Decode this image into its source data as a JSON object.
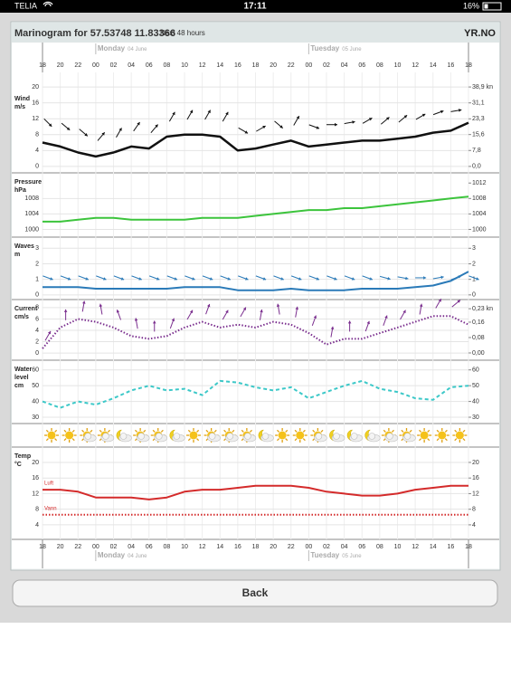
{
  "status_bar": {
    "carrier": "TELIA",
    "time": "17:11",
    "battery": "16%"
  },
  "header": {
    "title": "Marinogram for 57.53748 11.83366",
    "subtitle": "Next 48 hours",
    "logo": "YR.NO"
  },
  "time_axis": {
    "hours": [
      "18",
      "20",
      "22",
      "00",
      "02",
      "04",
      "06",
      "08",
      "10",
      "12",
      "14",
      "16",
      "18",
      "20",
      "22",
      "00",
      "02",
      "04",
      "06",
      "08",
      "10",
      "12",
      "14",
      "16",
      "18"
    ],
    "days": [
      {
        "name": "Monday",
        "date": "04 June"
      },
      {
        "name": "Tuesday",
        "date": "05 June"
      }
    ]
  },
  "chart_data": [
    {
      "type": "line",
      "label": [
        "Wind",
        "m/s"
      ],
      "ylim": [
        -1.4,
        21.4
      ],
      "yticks": [
        0,
        4,
        8,
        12,
        16,
        20
      ],
      "y2lim": [
        -2.72,
        41.6
      ],
      "y2ticks": [
        {
          "value": 0,
          "label": "0,0"
        },
        {
          "value": 7.8,
          "label": "7,8"
        },
        {
          "value": 15.6,
          "label": "15,6"
        },
        {
          "value": 23.3,
          "label": "23,3"
        },
        {
          "value": 31.1,
          "label": "31,1"
        },
        {
          "value": 38.9,
          "label": "38,9 kn"
        }
      ],
      "series": [
        {
          "color": "#111111",
          "line_style": "solid",
          "values": [
            6,
            5,
            3.5,
            2.5,
            3.5,
            5,
            4.5,
            7.5,
            8,
            8,
            7.5,
            4,
            4.5,
            5.5,
            6.5,
            5,
            5.5,
            6,
            6.5,
            6.5,
            7,
            7.5,
            8.5,
            9,
            11
          ],
          "directions": [
            45,
            40,
            40,
            -50,
            -60,
            -55,
            -50,
            -60,
            -60,
            -60,
            -60,
            30,
            -30,
            40,
            -60,
            20,
            0,
            -10,
            -30,
            -40,
            -40,
            -30,
            -20,
            -10,
            10
          ]
        }
      ]
    },
    {
      "type": "line",
      "label": [
        "Pressure",
        "hPa"
      ],
      "ylim": [
        998,
        1014.4
      ],
      "yticks": [
        1000,
        1004,
        1008
      ],
      "y2lim": [
        998,
        1014.4
      ],
      "y2ticks": [
        1000,
        1004,
        1008,
        1012
      ],
      "series": [
        {
          "color": "#3cc43c",
          "line_style": "solid",
          "values": [
            1002,
            1002,
            1002.5,
            1003,
            1003,
            1002.5,
            1002.5,
            1002.5,
            1002.5,
            1003,
            1003,
            1003,
            1003.5,
            1004,
            1004.5,
            1005,
            1005,
            1005.5,
            1005.5,
            1006,
            1006.5,
            1007,
            1007.5,
            1008,
            1008.5
          ]
        }
      ]
    },
    {
      "type": "line",
      "label": [
        "Waves",
        "m"
      ],
      "ylim": [
        -0.3,
        3.6
      ],
      "yticks": [
        0,
        1,
        2,
        3
      ],
      "y2lim": [
        -0.3,
        3.6
      ],
      "y2ticks": [
        0,
        1,
        2,
        3
      ],
      "series": [
        {
          "color": "#2a7ab8",
          "line_style": "solid",
          "values": [
            0.5,
            0.5,
            0.5,
            0.4,
            0.4,
            0.4,
            0.4,
            0.4,
            0.5,
            0.5,
            0.5,
            0.3,
            0.3,
            0.3,
            0.4,
            0.3,
            0.3,
            0.3,
            0.4,
            0.4,
            0.4,
            0.5,
            0.6,
            0.9,
            1.5
          ],
          "directions": [
            20,
            20,
            20,
            20,
            20,
            20,
            20,
            20,
            20,
            20,
            20,
            20,
            20,
            20,
            20,
            20,
            20,
            20,
            20,
            15,
            10,
            0,
            -10,
            -20,
            20
          ]
        }
      ]
    },
    {
      "type": "line",
      "label": [
        "Current",
        "cm/s"
      ],
      "ylim": [
        -1.1,
        9.1
      ],
      "yticks": [
        0,
        2,
        4,
        6,
        8
      ],
      "y2lim": [
        -0.033,
        0.268
      ],
      "y2ticks": [
        {
          "value": 0,
          "label": "0,00"
        },
        {
          "value": 0.08,
          "label": "0,08"
        },
        {
          "value": 0.16,
          "label": "0,16"
        },
        {
          "value": 0.23,
          "label": "0,23 kn"
        }
      ],
      "series": [
        {
          "color": "#7a2e8e",
          "line_style": "dotted",
          "values": [
            0.8,
            4.5,
            6,
            5.5,
            4.5,
            3,
            2.5,
            3,
            4.5,
            5.5,
            4.5,
            5,
            4.5,
            5.5,
            5,
            3.5,
            1.5,
            2.5,
            2.5,
            3.5,
            4.5,
            5.5,
            6.5,
            6.5,
            5
          ],
          "directions": [
            -60,
            -90,
            -80,
            -100,
            -110,
            -100,
            -90,
            -70,
            -60,
            -70,
            -60,
            -60,
            -80,
            -100,
            -80,
            -70,
            -80,
            -90,
            -70,
            -70,
            -60,
            -80,
            -60,
            -40,
            -60
          ]
        }
      ]
    },
    {
      "type": "line",
      "label": [
        "Water",
        "level",
        "cm"
      ],
      "ylim": [
        26,
        65
      ],
      "yticks": [
        30,
        40,
        50,
        60
      ],
      "y2lim": [
        26,
        65
      ],
      "y2ticks": [
        30,
        40,
        50,
        60
      ],
      "series": [
        {
          "color": "#3cc8c8",
          "line_style": "dashed",
          "values": [
            40,
            36,
            40,
            38,
            42,
            47,
            50,
            47,
            48,
            44,
            53,
            52,
            49,
            47,
            49,
            42,
            46,
            50,
            53,
            48,
            46,
            42,
            41,
            49,
            50
          ]
        }
      ]
    },
    {
      "type": "line",
      "label": [
        "Temp",
        "°C"
      ],
      "ylim": [
        0.5,
        23.7
      ],
      "yticks": [
        4,
        8,
        12,
        16,
        20
      ],
      "y2lim": [
        0.5,
        23.7
      ],
      "y2ticks": [
        4,
        8,
        12,
        16,
        20
      ],
      "series": [
        {
          "name": "Luft",
          "color": "#d42b2b",
          "line_style": "solid",
          "values": [
            13,
            13,
            12.5,
            11,
            11,
            11,
            10.5,
            11,
            12.5,
            13,
            13,
            13.5,
            14,
            14,
            14,
            13.5,
            12.5,
            12,
            11.5,
            11.5,
            12,
            13,
            13.5,
            14,
            14
          ]
        },
        {
          "name": "Vann",
          "color": "#d42b2b",
          "line_style": "dotted",
          "values": [
            6.6,
            6.6,
            6.6,
            6.6,
            6.6,
            6.6,
            6.6,
            6.6,
            6.6,
            6.6,
            6.6,
            6.6,
            6.6,
            6.6,
            6.6,
            6.6,
            6.6,
            6.6,
            6.6,
            6.6,
            6.6,
            6.6,
            6.6,
            6.6,
            6.6
          ]
        }
      ]
    }
  ],
  "button": {
    "label": "Back"
  }
}
